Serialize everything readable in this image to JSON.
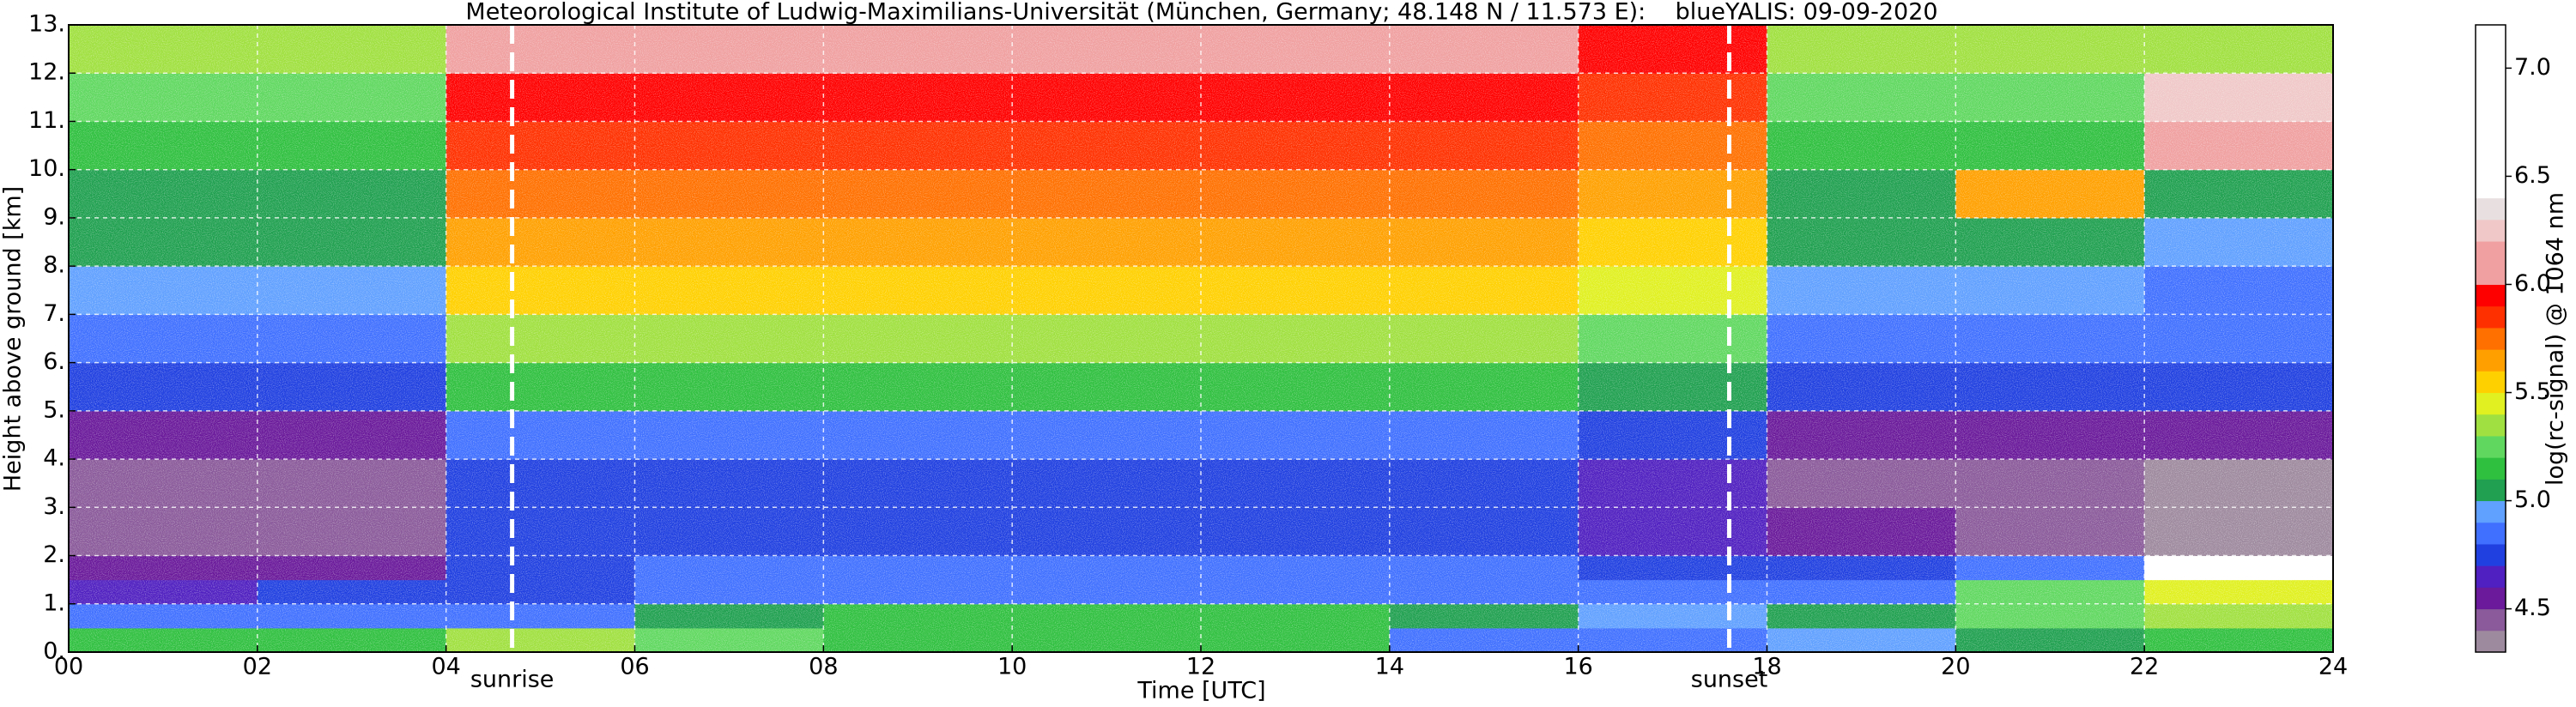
{
  "chart_data": {
    "type": "heatmap",
    "title": "Meteorological Institute of Ludwig-Maximilians-Universität (München, Germany; 48.148 N / 11.573 E):    blueYALIS: 09-09-2020",
    "xlabel": "Time [UTC]",
    "ylabel": "Height above ground [km]",
    "colorbar_label": "log(rc-signal) @ 1064 nm",
    "xlim": [
      0,
      24
    ],
    "ylim": [
      0,
      13
    ],
    "zlim": [
      4.3,
      7.2
    ],
    "xticks": [
      {
        "value": 0,
        "label": "00"
      },
      {
        "value": 2,
        "label": "02"
      },
      {
        "value": 4,
        "label": "04"
      },
      {
        "value": 6,
        "label": "06"
      },
      {
        "value": 8,
        "label": "08"
      },
      10,
      12,
      14,
      16,
      18,
      20,
      22,
      24
    ],
    "yticks": [
      {
        "value": 0,
        "label": "0."
      },
      {
        "value": 1,
        "label": "1."
      },
      {
        "value": 2,
        "label": "2."
      },
      {
        "value": 3,
        "label": "3."
      },
      {
        "value": 4,
        "label": "4."
      },
      {
        "value": 5,
        "label": "5."
      },
      {
        "value": 6,
        "label": "6."
      },
      {
        "value": 7,
        "label": "7."
      },
      {
        "value": 8,
        "label": "8."
      },
      {
        "value": 9,
        "label": "9."
      },
      {
        "value": 10,
        "label": "10."
      },
      {
        "value": 11,
        "label": "11."
      },
      {
        "value": 12,
        "label": "12."
      },
      {
        "value": 13,
        "label": "13."
      }
    ],
    "zticks": [
      4.5,
      {
        "value": 5,
        "label": "5.0"
      },
      5.5,
      {
        "value": 6,
        "label": "6.0"
      },
      6.5,
      {
        "value": 7,
        "label": "7.0"
      }
    ],
    "grid": true,
    "annotations": [
      {
        "text": "sunrise",
        "x": 4.7
      },
      {
        "text": "sunset",
        "x": 17.6
      }
    ],
    "xbins": [
      0,
      2,
      4,
      6,
      8,
      10,
      12,
      14,
      16,
      18,
      20,
      22,
      24
    ],
    "ybins": [
      0,
      0.5,
      1,
      1.5,
      2,
      3,
      4,
      5,
      6,
      7,
      8,
      9,
      10,
      11,
      12,
      13
    ],
    "z": [
      [
        5.1,
        5.1,
        5.3,
        5.2,
        5.1,
        5.1,
        5.1,
        4.8,
        4.8,
        4.9,
        5.0,
        5.1
      ],
      [
        4.8,
        4.8,
        4.8,
        5.0,
        5.1,
        5.1,
        5.1,
        5.0,
        4.9,
        5.0,
        5.2,
        5.3
      ],
      [
        4.6,
        4.7,
        4.7,
        4.8,
        4.8,
        4.8,
        4.8,
        4.8,
        4.8,
        4.8,
        5.2,
        5.4
      ],
      [
        4.5,
        4.5,
        4.7,
        4.8,
        4.8,
        4.8,
        4.8,
        4.8,
        4.7,
        4.7,
        4.8,
        6.5
      ],
      [
        4.4,
        4.4,
        4.7,
        4.7,
        4.7,
        4.7,
        4.7,
        4.7,
        4.6,
        4.5,
        4.4,
        4.3
      ],
      [
        4.4,
        4.4,
        4.7,
        4.7,
        4.7,
        4.7,
        4.7,
        4.7,
        4.6,
        4.4,
        4.4,
        4.3
      ],
      [
        4.5,
        4.5,
        4.8,
        4.8,
        4.8,
        4.8,
        4.8,
        4.8,
        4.7,
        4.5,
        4.5,
        4.5
      ],
      [
        4.7,
        4.7,
        5.1,
        5.1,
        5.1,
        5.1,
        5.1,
        5.1,
        5.0,
        4.7,
        4.7,
        4.7
      ],
      [
        4.8,
        4.8,
        5.3,
        5.3,
        5.3,
        5.3,
        5.3,
        5.3,
        5.2,
        4.8,
        4.8,
        4.8
      ],
      [
        4.9,
        4.9,
        5.5,
        5.5,
        5.5,
        5.5,
        5.5,
        5.5,
        5.4,
        4.9,
        4.9,
        4.8
      ],
      [
        5.0,
        5.0,
        5.6,
        5.6,
        5.6,
        5.6,
        5.6,
        5.6,
        5.5,
        5.0,
        5.0,
        4.9
      ],
      [
        5.0,
        5.0,
        5.7,
        5.7,
        5.7,
        5.7,
        5.7,
        5.7,
        5.6,
        5.0,
        5.6,
        5.0
      ],
      [
        5.1,
        5.1,
        5.8,
        5.8,
        5.8,
        5.8,
        5.8,
        5.8,
        5.7,
        5.1,
        5.1,
        6.0
      ],
      [
        5.2,
        5.2,
        5.9,
        5.9,
        5.9,
        5.9,
        5.9,
        5.9,
        5.8,
        5.2,
        5.2,
        6.2
      ],
      [
        5.3,
        5.3,
        6.0,
        6.0,
        6.0,
        6.0,
        6.0,
        6.0,
        5.9,
        5.3,
        5.3,
        5.3
      ]
    ],
    "colormap": [
      {
        "value": 4.3,
        "color": "#9e8a9e"
      },
      {
        "value": 4.4,
        "color": "#8a5a9a"
      },
      {
        "value": 4.5,
        "color": "#6a1a9a"
      },
      {
        "value": 4.6,
        "color": "#5020c0"
      },
      {
        "value": 4.7,
        "color": "#2040e0"
      },
      {
        "value": 4.8,
        "color": "#4070ff"
      },
      {
        "value": 4.9,
        "color": "#60a0ff"
      },
      {
        "value": 5.0,
        "color": "#20a050"
      },
      {
        "value": 5.1,
        "color": "#30c040"
      },
      {
        "value": 5.2,
        "color": "#60d860"
      },
      {
        "value": 5.3,
        "color": "#a0e040"
      },
      {
        "value": 5.4,
        "color": "#e0f020"
      },
      {
        "value": 5.5,
        "color": "#ffd000"
      },
      {
        "value": 5.6,
        "color": "#ffa000"
      },
      {
        "value": 5.7,
        "color": "#ff7000"
      },
      {
        "value": 5.8,
        "color": "#ff3000"
      },
      {
        "value": 5.9,
        "color": "#ff0000"
      },
      {
        "value": 6.0,
        "color": "#f0a0a0"
      },
      {
        "value": 6.2,
        "color": "#f0c8c8"
      },
      {
        "value": 6.3,
        "color": "#e8e0e0"
      },
      {
        "value": 6.4,
        "color": "#ffffff"
      }
    ]
  }
}
